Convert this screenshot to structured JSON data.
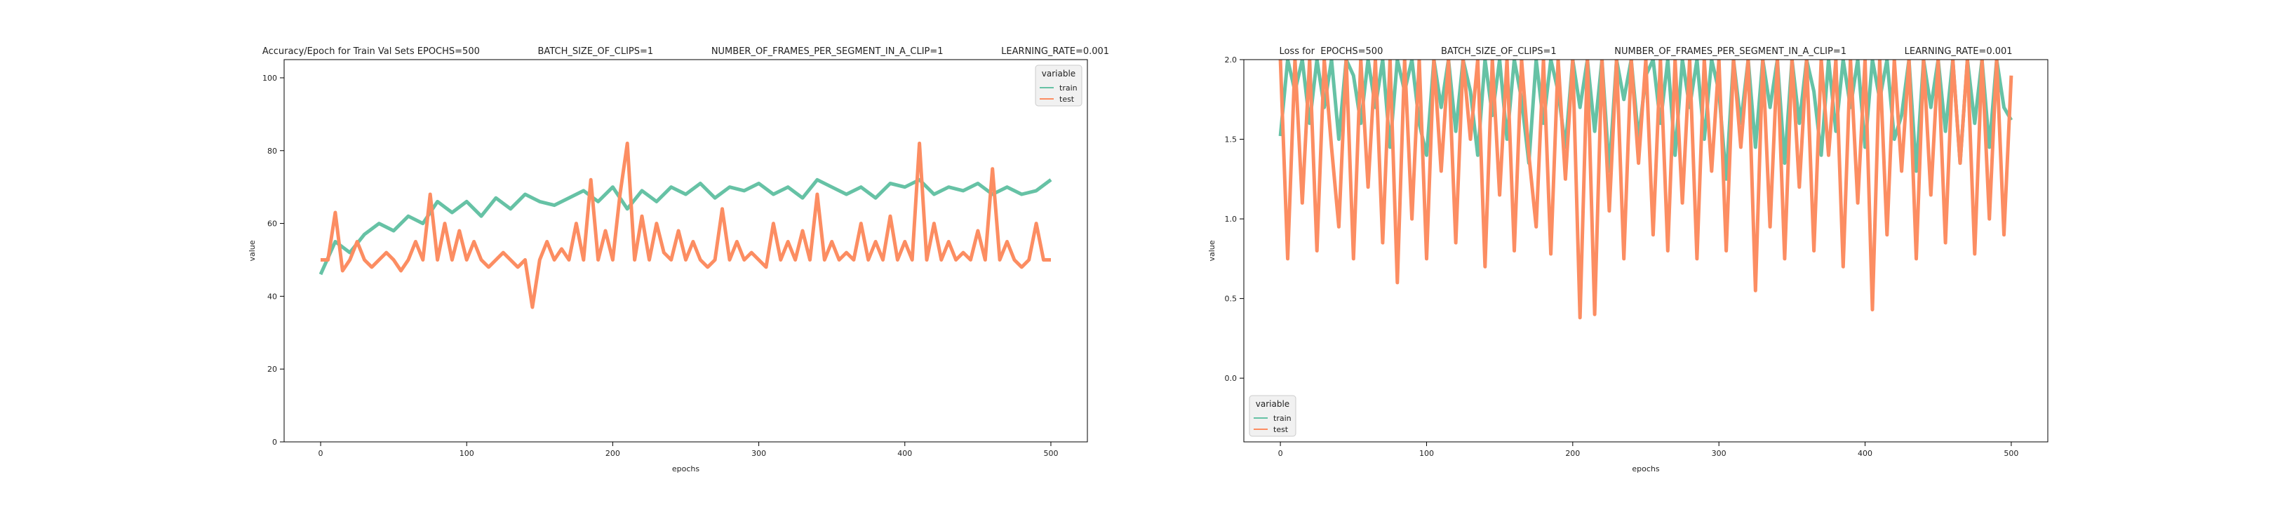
{
  "chart_data": [
    {
      "type": "line",
      "title": "Accuracy/Epoch for Train Val Sets EPOCHS=500                    BATCH_SIZE_OF_CLIPS=1                    NUMBER_OF_FRAMES_PER_SEGMENT_IN_A_CLIP=1                    LEARNING_RATE=0.001",
      "xlabel": "epochs",
      "ylabel": "value",
      "xlim": [
        -25,
        525
      ],
      "ylim": [
        0,
        105
      ],
      "xticks": [
        0,
        100,
        200,
        300,
        400,
        500
      ],
      "yticks": [
        0,
        20,
        40,
        60,
        80,
        100
      ],
      "legend": {
        "title": "variable",
        "placement": "top-right"
      },
      "series": [
        {
          "name": "train",
          "color": "#66c2a5",
          "x": [
            0,
            10,
            20,
            30,
            40,
            50,
            60,
            70,
            80,
            90,
            100,
            110,
            120,
            130,
            140,
            150,
            160,
            170,
            180,
            190,
            200,
            210,
            220,
            230,
            240,
            250,
            260,
            270,
            280,
            290,
            300,
            310,
            320,
            330,
            340,
            350,
            360,
            370,
            380,
            390,
            400,
            410,
            420,
            430,
            440,
            450,
            460,
            470,
            480,
            490,
            500
          ],
          "y": [
            46,
            55,
            52,
            57,
            60,
            58,
            62,
            60,
            66,
            63,
            66,
            62,
            67,
            64,
            68,
            66,
            65,
            67,
            69,
            66,
            70,
            64,
            69,
            66,
            70,
            68,
            71,
            67,
            70,
            69,
            71,
            68,
            70,
            67,
            72,
            70,
            68,
            70,
            67,
            71,
            70,
            72,
            68,
            70,
            69,
            71,
            68,
            70,
            68,
            69,
            72
          ]
        },
        {
          "name": "test",
          "color": "#fc8d62",
          "x": [
            0,
            5,
            10,
            15,
            20,
            25,
            30,
            35,
            40,
            45,
            50,
            55,
            60,
            65,
            70,
            75,
            80,
            85,
            90,
            95,
            100,
            105,
            110,
            115,
            120,
            125,
            130,
            135,
            140,
            145,
            150,
            155,
            160,
            165,
            170,
            175,
            180,
            185,
            190,
            195,
            200,
            205,
            210,
            215,
            220,
            225,
            230,
            235,
            240,
            245,
            250,
            255,
            260,
            265,
            270,
            275,
            280,
            285,
            290,
            295,
            300,
            305,
            310,
            315,
            320,
            325,
            330,
            335,
            340,
            345,
            350,
            355,
            360,
            365,
            370,
            375,
            380,
            385,
            390,
            395,
            400,
            405,
            410,
            415,
            420,
            425,
            430,
            435,
            440,
            445,
            450,
            455,
            460,
            465,
            470,
            475,
            480,
            485,
            490,
            495,
            500
          ],
          "y": [
            50,
            50,
            63,
            47,
            50,
            55,
            50,
            48,
            50,
            52,
            50,
            47,
            50,
            55,
            50,
            68,
            50,
            60,
            50,
            58,
            50,
            55,
            50,
            48,
            50,
            52,
            50,
            48,
            50,
            37,
            50,
            55,
            50,
            53,
            50,
            60,
            50,
            72,
            50,
            58,
            50,
            68,
            82,
            50,
            62,
            50,
            60,
            52,
            50,
            58,
            50,
            55,
            50,
            48,
            50,
            64,
            50,
            55,
            50,
            52,
            50,
            48,
            60,
            50,
            55,
            50,
            58,
            50,
            68,
            50,
            55,
            50,
            52,
            50,
            60,
            50,
            55,
            50,
            62,
            50,
            55,
            50,
            82,
            50,
            60,
            50,
            55,
            50,
            52,
            50,
            58,
            50,
            75,
            50,
            55,
            50,
            48,
            50,
            60,
            50,
            50
          ]
        }
      ]
    },
    {
      "type": "line",
      "title": "Loss for  EPOCHS=500                    BATCH_SIZE_OF_CLIPS=1                    NUMBER_OF_FRAMES_PER_SEGMENT_IN_A_CLIP=1                    LEARNING_RATE=0.001",
      "xlabel": "epochs",
      "ylabel": "value",
      "xlim": [
        -25,
        525
      ],
      "ylim": [
        -0.4,
        2.0
      ],
      "xticks": [
        0,
        100,
        200,
        300,
        400,
        500
      ],
      "yticks": [
        0.0,
        0.5,
        1.0,
        1.5,
        2.0
      ],
      "legend": {
        "title": "variable",
        "placement": "bottom-left"
      },
      "series": [
        {
          "name": "train",
          "color": "#66c2a5",
          "x": [
            0,
            5,
            10,
            15,
            20,
            25,
            30,
            35,
            40,
            45,
            50,
            55,
            60,
            65,
            70,
            75,
            80,
            85,
            90,
            95,
            100,
            105,
            110,
            115,
            120,
            125,
            130,
            135,
            140,
            145,
            150,
            155,
            160,
            165,
            170,
            175,
            180,
            185,
            190,
            195,
            200,
            205,
            210,
            215,
            220,
            225,
            230,
            235,
            240,
            245,
            250,
            255,
            260,
            265,
            270,
            275,
            280,
            285,
            290,
            295,
            300,
            305,
            310,
            315,
            320,
            325,
            330,
            335,
            340,
            345,
            350,
            355,
            360,
            365,
            370,
            375,
            380,
            385,
            390,
            395,
            400,
            405,
            410,
            415,
            420,
            425,
            430,
            435,
            440,
            445,
            450,
            455,
            460,
            465,
            470,
            475,
            480,
            485,
            490,
            495,
            500
          ],
          "y": [
            1.52,
            2.0,
            1.8,
            2.0,
            1.6,
            2.0,
            1.7,
            2.0,
            1.5,
            2.0,
            1.9,
            1.6,
            2.0,
            1.7,
            2.0,
            1.45,
            2.0,
            1.8,
            2.0,
            1.6,
            1.4,
            2.0,
            1.7,
            2.0,
            1.55,
            2.0,
            1.8,
            1.4,
            2.0,
            1.65,
            2.0,
            1.5,
            2.0,
            1.75,
            1.35,
            2.0,
            1.6,
            2.0,
            1.8,
            1.45,
            2.0,
            1.7,
            2.0,
            1.55,
            2.0,
            1.3,
            2.0,
            1.75,
            2.0,
            1.5,
            1.9,
            2.0,
            1.6,
            2.0,
            1.4,
            2.0,
            1.7,
            2.0,
            1.5,
            2.0,
            1.8,
            1.25,
            2.0,
            1.6,
            2.0,
            1.45,
            2.0,
            1.7,
            2.0,
            1.35,
            2.0,
            1.6,
            2.0,
            1.8,
            1.4,
            2.0,
            1.55,
            2.0,
            1.7,
            2.0,
            1.45,
            2.0,
            1.75,
            2.0,
            1.5,
            1.65,
            2.0,
            1.3,
            2.0,
            1.7,
            2.0,
            1.55,
            2.0,
            1.35,
            2.0,
            1.6,
            2.0,
            1.45,
            2.0,
            1.7,
            1.62
          ]
        },
        {
          "name": "test",
          "color": "#fc8d62",
          "x": [
            0,
            5,
            10,
            15,
            20,
            25,
            30,
            35,
            40,
            45,
            50,
            55,
            60,
            65,
            70,
            75,
            80,
            85,
            90,
            95,
            100,
            105,
            110,
            115,
            120,
            125,
            130,
            135,
            140,
            145,
            150,
            155,
            160,
            165,
            170,
            175,
            180,
            185,
            190,
            195,
            200,
            205,
            210,
            215,
            220,
            225,
            230,
            235,
            240,
            245,
            250,
            255,
            260,
            265,
            270,
            275,
            280,
            285,
            290,
            295,
            300,
            305,
            310,
            315,
            320,
            325,
            330,
            335,
            340,
            345,
            350,
            355,
            360,
            365,
            370,
            375,
            380,
            385,
            390,
            395,
            400,
            405,
            410,
            415,
            420,
            425,
            430,
            435,
            440,
            445,
            450,
            455,
            460,
            465,
            470,
            475,
            480,
            485,
            490,
            495,
            500
          ],
          "y": [
            2.0,
            0.75,
            2.0,
            1.1,
            2.0,
            0.8,
            2.0,
            1.45,
            0.95,
            2.0,
            0.75,
            2.0,
            1.2,
            2.0,
            0.85,
            2.0,
            0.6,
            2.0,
            1.0,
            2.0,
            0.75,
            2.0,
            1.3,
            2.0,
            0.85,
            2.0,
            1.5,
            2.0,
            0.7,
            2.0,
            1.15,
            2.0,
            0.8,
            2.0,
            1.4,
            0.95,
            2.0,
            0.78,
            2.0,
            1.25,
            2.0,
            0.38,
            2.0,
            0.4,
            2.0,
            1.05,
            2.0,
            0.75,
            2.0,
            1.35,
            2.0,
            0.9,
            2.0,
            0.8,
            2.0,
            1.1,
            2.0,
            0.75,
            2.0,
            1.3,
            2.0,
            0.8,
            2.0,
            1.45,
            2.0,
            0.55,
            2.0,
            0.95,
            2.0,
            0.75,
            2.0,
            1.2,
            2.0,
            0.8,
            2.0,
            1.4,
            2.0,
            0.7,
            2.0,
            1.1,
            2.0,
            0.43,
            2.0,
            0.9,
            2.0,
            1.3,
            2.0,
            0.75,
            2.0,
            1.15,
            2.0,
            0.85,
            2.0,
            1.35,
            2.0,
            0.78,
            2.0,
            1.0,
            2.0,
            0.9,
            1.9
          ]
        }
      ]
    }
  ]
}
